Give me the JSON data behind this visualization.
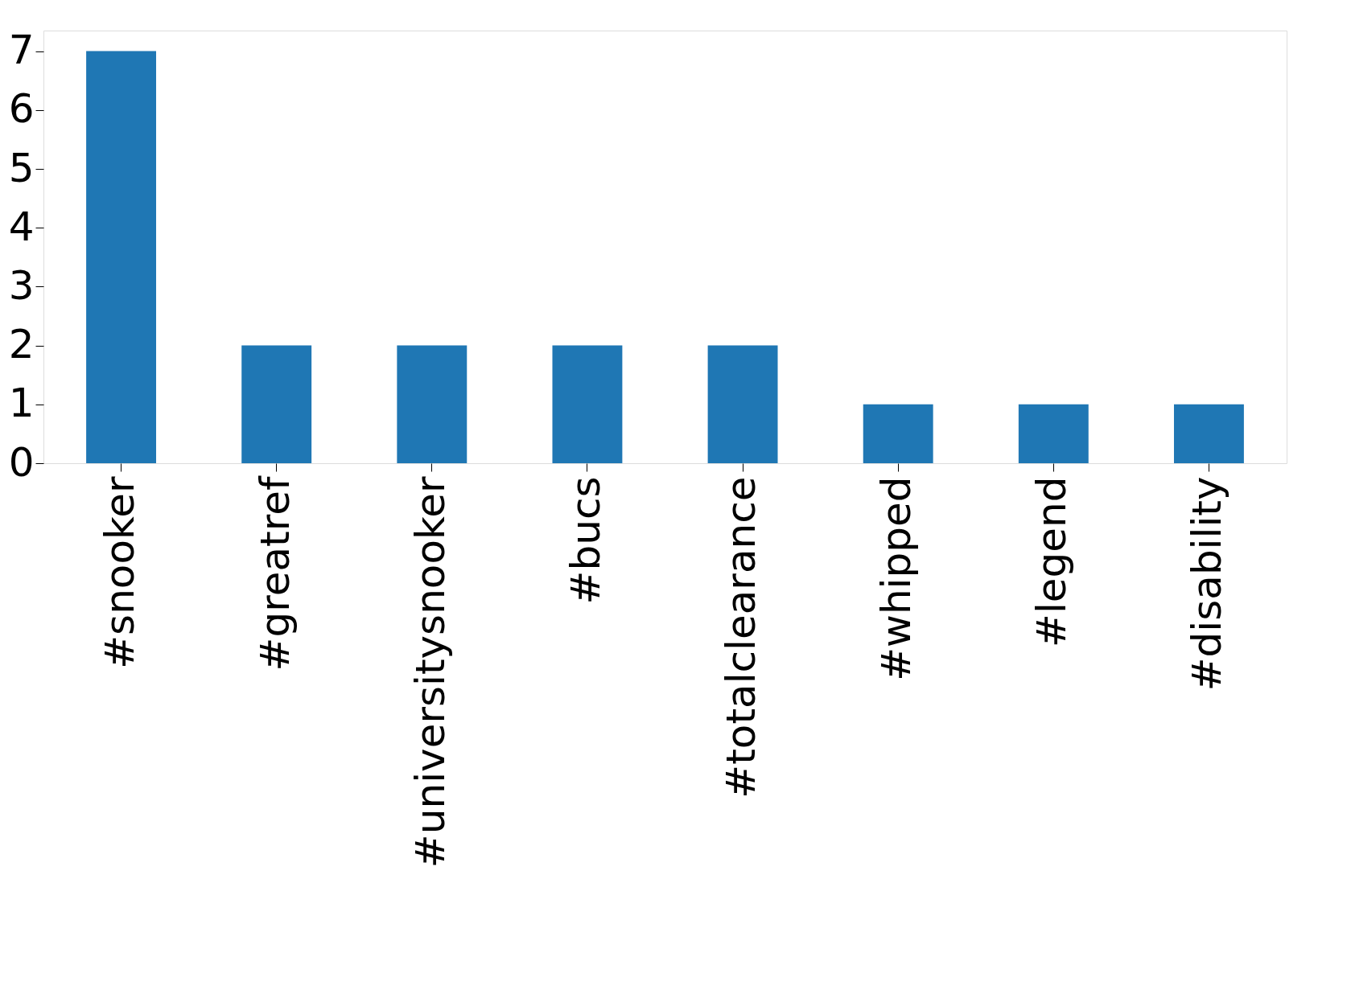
{
  "chart_data": {
    "type": "bar",
    "categories": [
      "#snooker",
      "#greatref",
      "#universitysnooker",
      "#bucs",
      "#totalclearance",
      "#whipped",
      "#legend",
      "#disability"
    ],
    "values": [
      7,
      2,
      2,
      2,
      2,
      1,
      1,
      1
    ],
    "color": "#1f77b4",
    "ylim": [
      0,
      7.35
    ],
    "yticks": [
      0,
      1,
      2,
      3,
      4,
      5,
      6,
      7
    ],
    "grid": false
  }
}
